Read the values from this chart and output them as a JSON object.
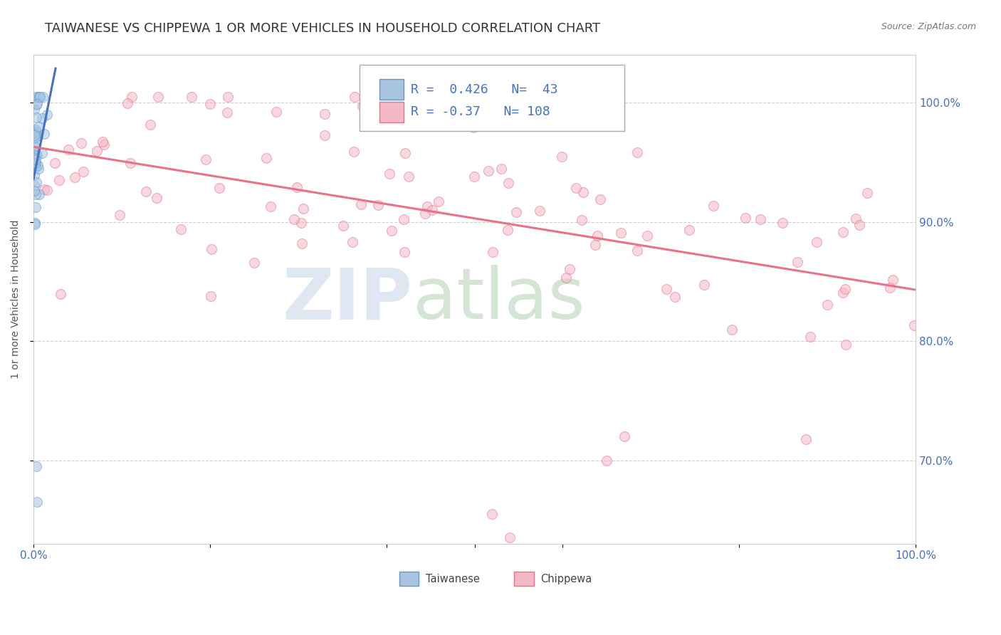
{
  "title": "TAIWANESE VS CHIPPEWA 1 OR MORE VEHICLES IN HOUSEHOLD CORRELATION CHART",
  "source": "Source: ZipAtlas.com",
  "ylabel": "1 or more Vehicles in Household",
  "xlim": [
    0.0,
    1.0
  ],
  "ylim": [
    0.63,
    1.04
  ],
  "xticklabels_left": "0.0%",
  "xticklabels_right": "100.0%",
  "ytick_right_labels": [
    "70.0%",
    "80.0%",
    "90.0%",
    "100.0%"
  ],
  "ytick_right_vals": [
    0.7,
    0.8,
    0.9,
    1.0
  ],
  "taiwanese_color": "#a8c4e0",
  "taiwanese_edge": "#5b9bd5",
  "chippewa_color": "#f4b8c8",
  "chippewa_edge": "#e8728a",
  "trend_taiwanese_color": "#4472c4",
  "trend_chippewa_color": "#e8728a",
  "R_taiwanese": 0.426,
  "N_taiwanese": 43,
  "R_chippewa": -0.37,
  "N_chippewa": 108,
  "watermark_zip": "ZIP",
  "watermark_atlas": "atlas",
  "watermark_color_zip": "#c8d8ea",
  "watermark_color_atlas": "#b0c8b0",
  "background_color": "#ffffff",
  "grid_color": "#d0d0d0",
  "title_fontsize": 13,
  "axis_label_fontsize": 10,
  "tick_fontsize": 11,
  "legend_fontsize": 13,
  "marker_size": 100,
  "marker_alpha": 0.55,
  "trend_lw": 2.2
}
